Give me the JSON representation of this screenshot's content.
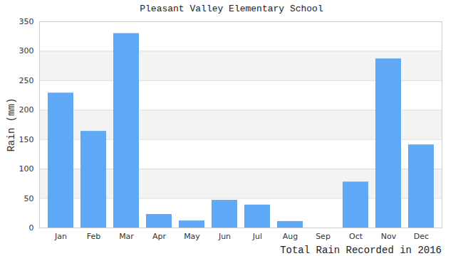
{
  "chart_data": {
    "type": "bar",
    "title": "Pleasant Valley Elementary School",
    "x_label": "Total Rain Recorded in 2016",
    "y_label": "Rain (mm)",
    "categories": [
      "Jan",
      "Feb",
      "Mar",
      "Apr",
      "May",
      "Jun",
      "Jul",
      "Aug",
      "Sep",
      "Oct",
      "Nov",
      "Dec"
    ],
    "values": [
      229,
      164,
      330,
      23,
      12,
      47,
      39,
      11,
      0,
      78,
      287,
      141
    ],
    "color": "#5fa8f5",
    "ylim": [
      0,
      350
    ],
    "yticks": [
      0,
      50,
      100,
      150,
      200,
      250,
      300,
      350
    ],
    "grid": true
  }
}
